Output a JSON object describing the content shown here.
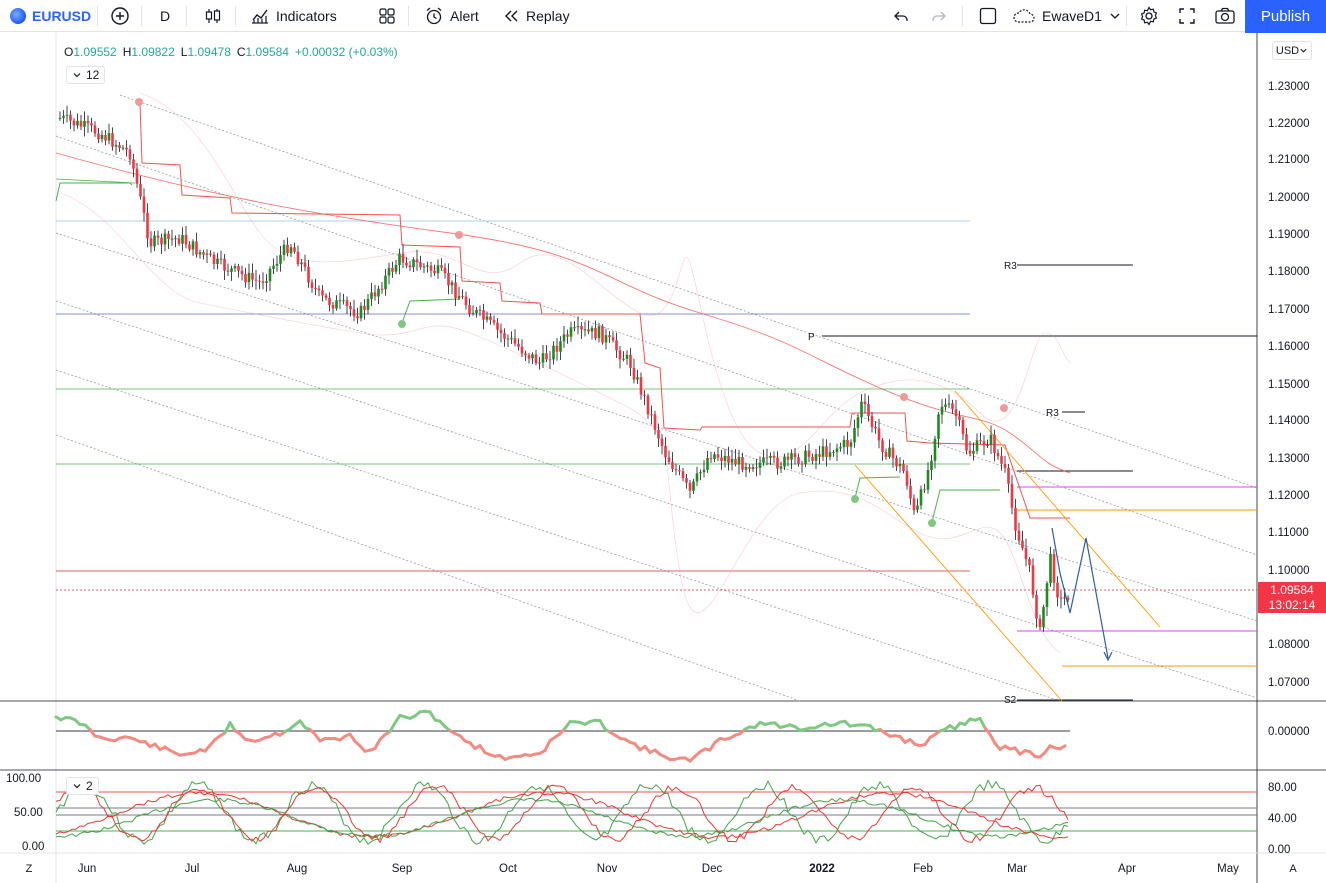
{
  "toolbar": {
    "symbol": "EURUSD",
    "interval": "D",
    "indicators_label": "Indicators",
    "alert_label": "Alert",
    "replay_label": "Replay",
    "layout_name": "EwaveD1",
    "publish_label": "Publish"
  },
  "legend": {
    "open": "1.09552",
    "high": "1.09822",
    "low": "1.09478",
    "close": "1.09584",
    "change": "+0.00032 (+0.03%)",
    "o_label": "O",
    "h_label": "H",
    "l_label": "L",
    "c_label": "C"
  },
  "main_pane": {
    "collapse_count": "12",
    "currency": "USD",
    "price_labels": [
      "1.23000",
      "1.22000",
      "1.21000",
      "1.20000",
      "1.19000",
      "1.18000",
      "1.17000",
      "1.16000",
      "1.15000",
      "1.14000",
      "1.13000",
      "1.12000",
      "1.11000",
      "1.10000",
      "1.08000",
      "1.07000"
    ],
    "last_price": "1.09584",
    "countdown": "13:02:14",
    "pivot_labels": {
      "r3_top": "R3",
      "p": "P",
      "r3_mid": "R3",
      "s2": "S2"
    }
  },
  "osc1": {
    "axis_label": "0.00000"
  },
  "osc2": {
    "collapse_count": "2",
    "left_labels": [
      "100.00",
      "50.00",
      "0.00"
    ],
    "right_labels": [
      "80.00",
      "40.00",
      "0.00"
    ]
  },
  "time_axis": {
    "labels": [
      "Jun",
      "Jul",
      "Aug",
      "Sep",
      "Oct",
      "Nov",
      "Dec",
      "2022",
      "Feb",
      "Mar",
      "Apr",
      "May"
    ],
    "left_corner": "Z",
    "right_corner": "A"
  },
  "colors": {
    "accent": "#2962ff",
    "up_candle": "#26a69a",
    "bull": "#21891f",
    "bear": "#f23645"
  }
}
